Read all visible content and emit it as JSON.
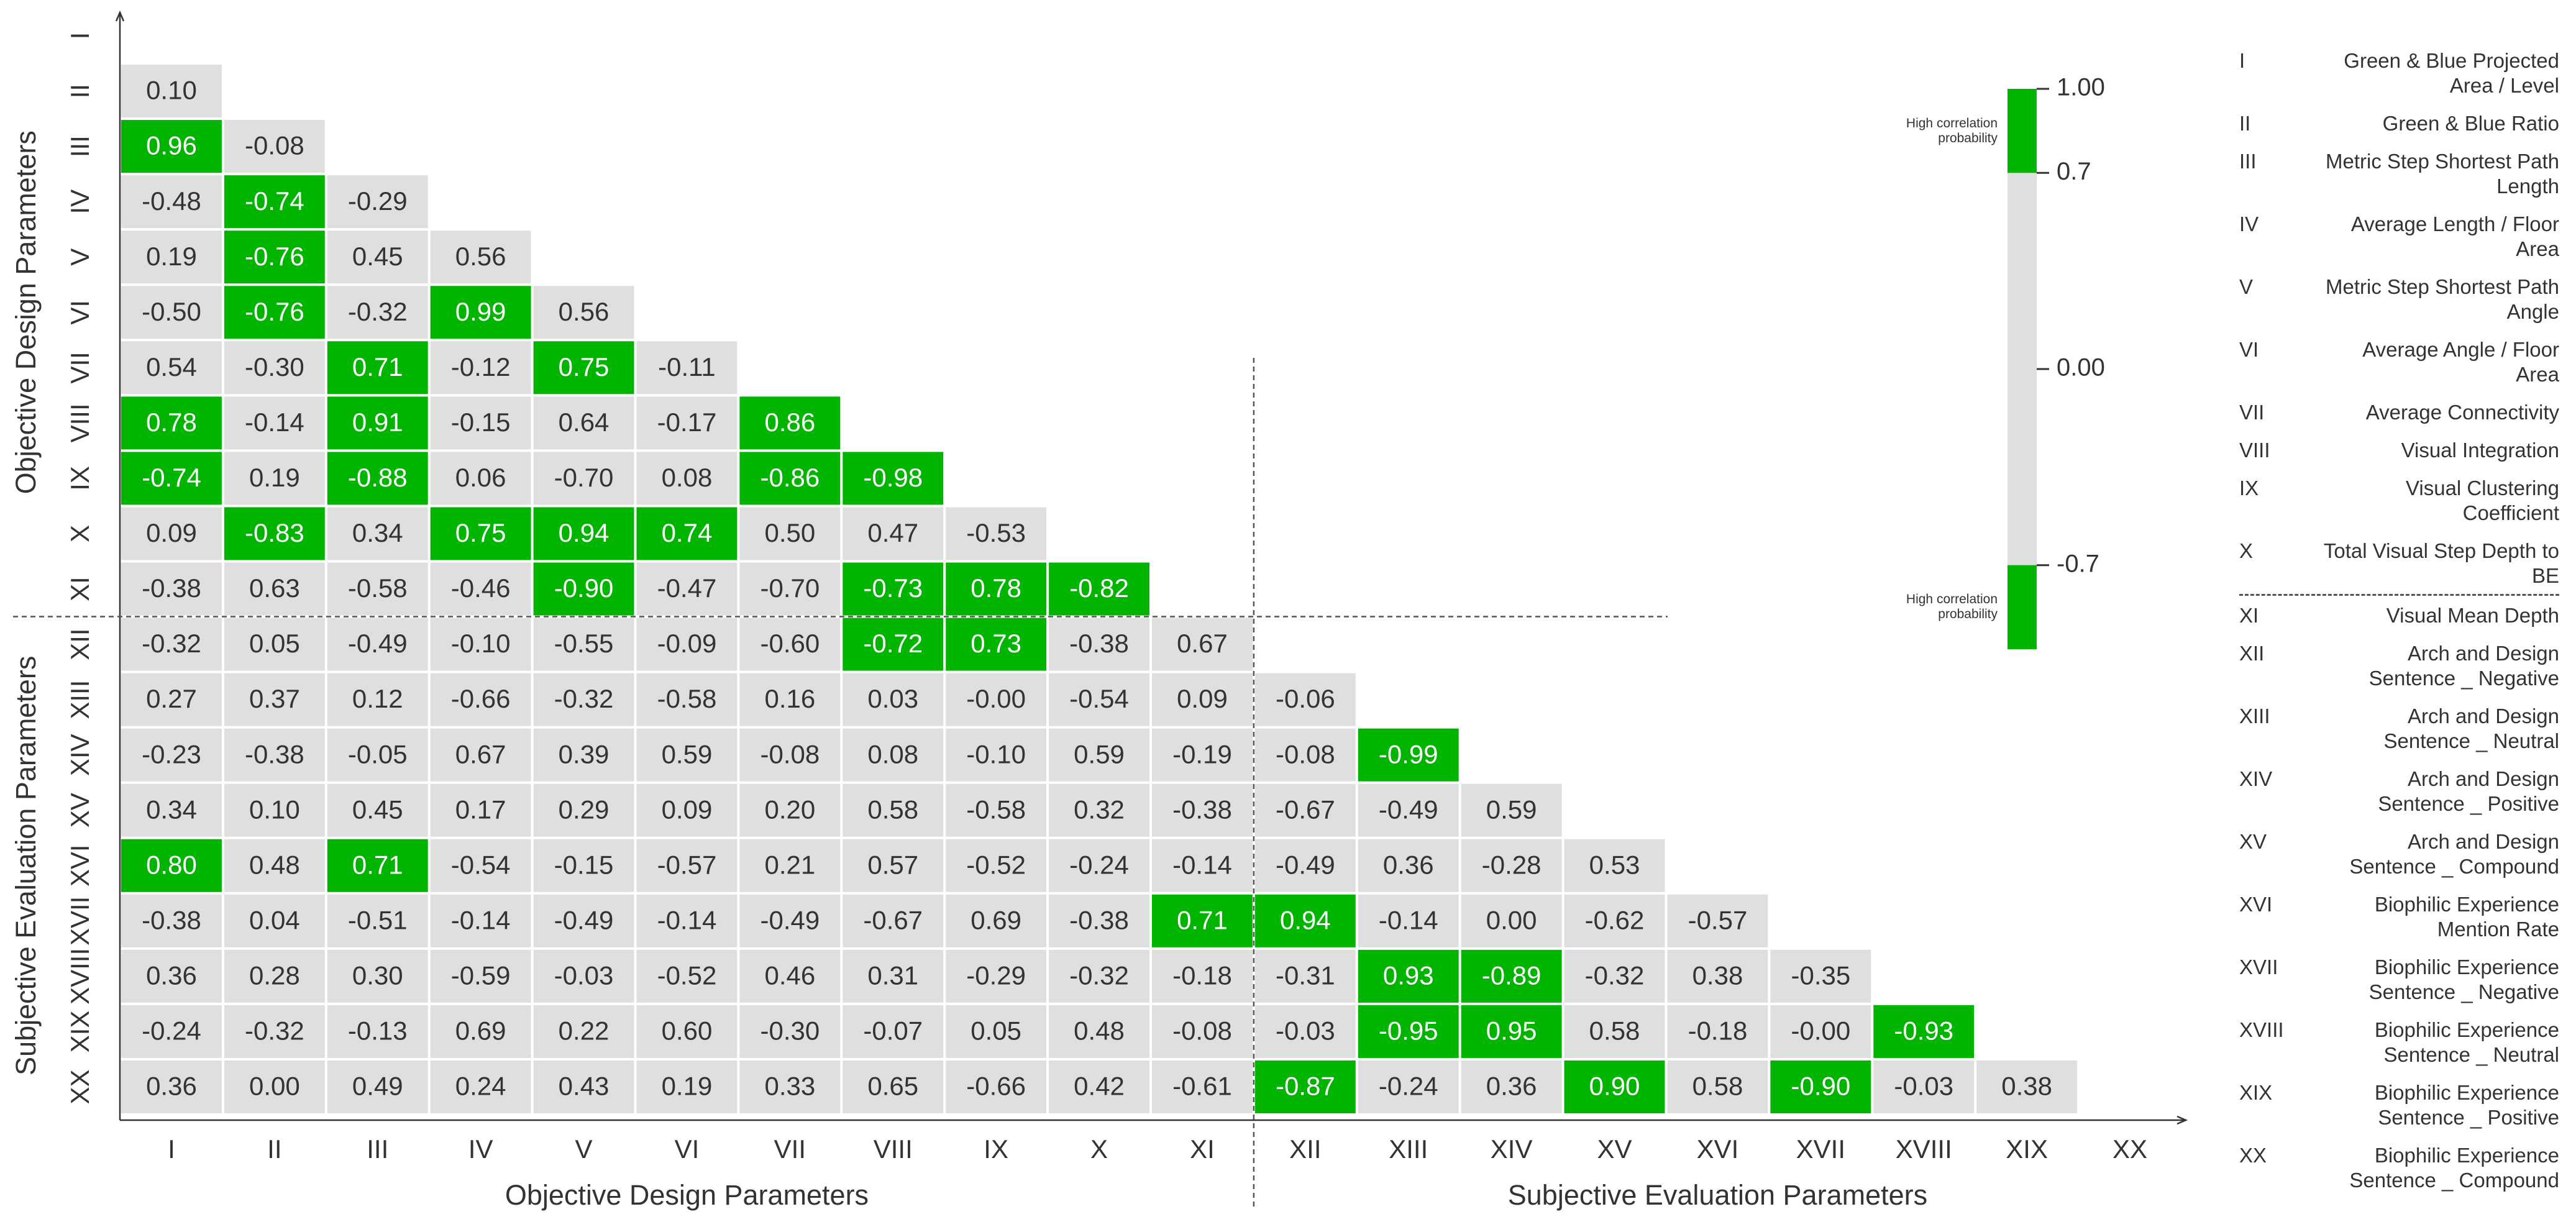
{
  "chart_data": {
    "type": "heatmap",
    "categories": [
      "I",
      "II",
      "III",
      "IV",
      "V",
      "VI",
      "VII",
      "VIII",
      "IX",
      "X",
      "XI",
      "XII",
      "XIII",
      "XIV",
      "XV",
      "XVI",
      "XVII",
      "XVIII",
      "XIX",
      "XX"
    ],
    "groups": [
      {
        "name": "Objective Design Parameters",
        "count": 11
      },
      {
        "name": "Subjective Evaluation Parameters",
        "count": 9
      }
    ],
    "values": [
      [],
      [
        0.1
      ],
      [
        0.96,
        -0.08
      ],
      [
        -0.48,
        -0.74,
        -0.29
      ],
      [
        0.19,
        -0.76,
        0.45,
        0.56
      ],
      [
        -0.5,
        -0.76,
        -0.32,
        0.99,
        0.56
      ],
      [
        0.54,
        -0.3,
        0.71,
        -0.12,
        0.75,
        -0.11
      ],
      [
        0.78,
        -0.14,
        0.91,
        -0.15,
        0.64,
        -0.17,
        0.86
      ],
      [
        -0.74,
        0.19,
        -0.88,
        0.06,
        -0.7,
        0.08,
        -0.86,
        -0.98
      ],
      [
        0.09,
        -0.83,
        0.34,
        0.75,
        0.94,
        0.74,
        0.5,
        0.47,
        -0.53
      ],
      [
        -0.38,
        0.63,
        -0.58,
        -0.46,
        -0.9,
        -0.47,
        -0.7,
        -0.73,
        0.78,
        -0.82
      ],
      [
        -0.32,
        0.05,
        -0.49,
        -0.1,
        -0.55,
        -0.09,
        -0.6,
        -0.72,
        0.73,
        -0.38,
        0.67
      ],
      [
        0.27,
        0.37,
        0.12,
        -0.66,
        -0.32,
        -0.58,
        0.16,
        0.03,
        -0.0,
        -0.54,
        0.09,
        -0.06
      ],
      [
        -0.23,
        -0.38,
        -0.05,
        0.67,
        0.39,
        0.59,
        -0.08,
        0.08,
        -0.1,
        0.59,
        -0.19,
        -0.08,
        -0.99
      ],
      [
        0.34,
        0.1,
        0.45,
        0.17,
        0.29,
        0.09,
        0.2,
        0.58,
        -0.58,
        0.32,
        -0.38,
        -0.67,
        -0.49,
        0.59
      ],
      [
        0.8,
        0.48,
        0.71,
        -0.54,
        -0.15,
        -0.57,
        0.21,
        0.57,
        -0.52,
        -0.24,
        -0.14,
        -0.49,
        0.36,
        -0.28,
        0.53
      ],
      [
        -0.38,
        0.04,
        -0.51,
        -0.14,
        -0.49,
        -0.14,
        -0.49,
        -0.67,
        0.69,
        -0.38,
        0.71,
        0.94,
        -0.14,
        0.0,
        -0.62,
        -0.57
      ],
      [
        0.36,
        0.28,
        0.3,
        -0.59,
        -0.03,
        -0.52,
        0.46,
        0.31,
        -0.29,
        -0.32,
        -0.18,
        -0.31,
        0.93,
        -0.89,
        -0.32,
        0.38,
        -0.35
      ],
      [
        -0.24,
        -0.32,
        -0.13,
        0.69,
        0.22,
        0.6,
        -0.3,
        -0.07,
        0.05,
        0.48,
        -0.08,
        -0.03,
        -0.95,
        0.95,
        0.58,
        -0.18,
        -0.0,
        -0.93
      ],
      [
        0.36,
        0.0,
        0.49,
        0.24,
        0.43,
        0.19,
        0.33,
        0.65,
        -0.66,
        0.42,
        -0.61,
        -0.87,
        -0.24,
        0.36,
        0.9,
        0.58,
        -0.9,
        -0.03,
        0.38
      ]
    ],
    "value_labels": [
      [],
      [
        "0.10"
      ],
      [
        "0.96",
        "-0.08"
      ],
      [
        "-0.48",
        "-0.74",
        "-0.29"
      ],
      [
        "0.19",
        "-0.76",
        "0.45",
        "0.56"
      ],
      [
        "-0.50",
        "-0.76",
        "-0.32",
        "0.99",
        "0.56"
      ],
      [
        "0.54",
        "-0.30",
        "0.71",
        "-0.12",
        "0.75",
        "-0.11"
      ],
      [
        "0.78",
        "-0.14",
        "0.91",
        "-0.15",
        "0.64",
        "-0.17",
        "0.86"
      ],
      [
        "-0.74",
        "0.19",
        "-0.88",
        "0.06",
        "-0.70",
        "0.08",
        "-0.86",
        "-0.98"
      ],
      [
        "0.09",
        "-0.83",
        "0.34",
        "0.75",
        "0.94",
        "0.74",
        "0.50",
        "0.47",
        "-0.53"
      ],
      [
        "-0.38",
        "0.63",
        "-0.58",
        "-0.46",
        "-0.90",
        "-0.47",
        "-0.70",
        "-0.73",
        "0.78",
        "-0.82"
      ],
      [
        "-0.32",
        "0.05",
        "-0.49",
        "-0.10",
        "-0.55",
        "-0.09",
        "-0.60",
        "-0.72",
        "0.73",
        "-0.38",
        "0.67"
      ],
      [
        "0.27",
        "0.37",
        "0.12",
        "-0.66",
        "-0.32",
        "-0.58",
        "0.16",
        "0.03",
        "-0.00",
        "-0.54",
        "0.09",
        "-0.06"
      ],
      [
        "-0.23",
        "-0.38",
        "-0.05",
        "0.67",
        "0.39",
        "0.59",
        "-0.08",
        "0.08",
        "-0.10",
        "0.59",
        "-0.19",
        "-0.08",
        "-0.99"
      ],
      [
        "0.34",
        "0.10",
        "0.45",
        "0.17",
        "0.29",
        "0.09",
        "0.20",
        "0.58",
        "-0.58",
        "0.32",
        "-0.38",
        "-0.67",
        "-0.49",
        "0.59"
      ],
      [
        "0.80",
        "0.48",
        "0.71",
        "-0.54",
        "-0.15",
        "-0.57",
        "0.21",
        "0.57",
        "-0.52",
        "-0.24",
        "-0.14",
        "-0.49",
        "0.36",
        "-0.28",
        "0.53"
      ],
      [
        "-0.38",
        "0.04",
        "-0.51",
        "-0.14",
        "-0.49",
        "-0.14",
        "-0.49",
        "-0.67",
        "0.69",
        "-0.38",
        "0.71",
        "0.94",
        "-0.14",
        "0.00",
        "-0.62",
        "-0.57"
      ],
      [
        "0.36",
        "0.28",
        "0.30",
        "-0.59",
        "-0.03",
        "-0.52",
        "0.46",
        "0.31",
        "-0.29",
        "-0.32",
        "-0.18",
        "-0.31",
        "0.93",
        "-0.89",
        "-0.32",
        "0.38",
        "-0.35"
      ],
      [
        "-0.24",
        "-0.32",
        "-0.13",
        "0.69",
        "0.22",
        "0.60",
        "-0.30",
        "-0.07",
        "0.05",
        "0.48",
        "-0.08",
        "-0.03",
        "-0.95",
        "0.95",
        "0.58",
        "-0.18",
        "-0.00",
        "-0.93"
      ],
      [
        "0.36",
        "0.00",
        "0.49",
        "0.24",
        "0.43",
        "0.19",
        "0.33",
        "0.65",
        "-0.66",
        "0.42",
        "-0.61",
        "-0.87",
        "-0.24",
        "0.36",
        "0.90",
        "0.58",
        "-0.90",
        "-0.03",
        "0.38"
      ]
    ],
    "colorbar": {
      "lim": [
        -1,
        1
      ],
      "ticks": [
        {
          "value": 1,
          "label": "1.00"
        },
        0.7,
        {
          "value": 0,
          "label": "0.00"
        },
        -0.7
      ],
      "high_bands": [
        [
          0.7,
          1
        ],
        [
          -1,
          -0.7
        ]
      ],
      "high_color": "#00b400",
      "base_color": "#dfdfdf",
      "annotation": "High correlation probability"
    },
    "parameters": [
      "Green & Blue Projected Area / Level",
      "Green & Blue Ratio",
      "Metric Step Shortest Path Length",
      "Average Length / Floor Area",
      "Metric Step Shortest Path Angle",
      "Average Angle / Floor Area",
      "Average Connectivity",
      "Visual Integration",
      "Visual Clustering Coefficient",
      "Total Visual Step Depth to BE",
      "Visual Mean Depth",
      "Arch and Design Sentence _ Negative",
      "Arch and Design Sentence _ Neutral",
      "Arch and Design Sentence _ Positive",
      "Arch and Design Sentence _ Compound",
      "Biophilic Experience Mention Rate",
      "Biophilic Experience Sentence _ Negative",
      "Biophilic Experience Sentence _ Neutral",
      "Biophilic Experience Sentence _ Positive",
      "Biophilic Experience Sentence _ Compound"
    ]
  }
}
